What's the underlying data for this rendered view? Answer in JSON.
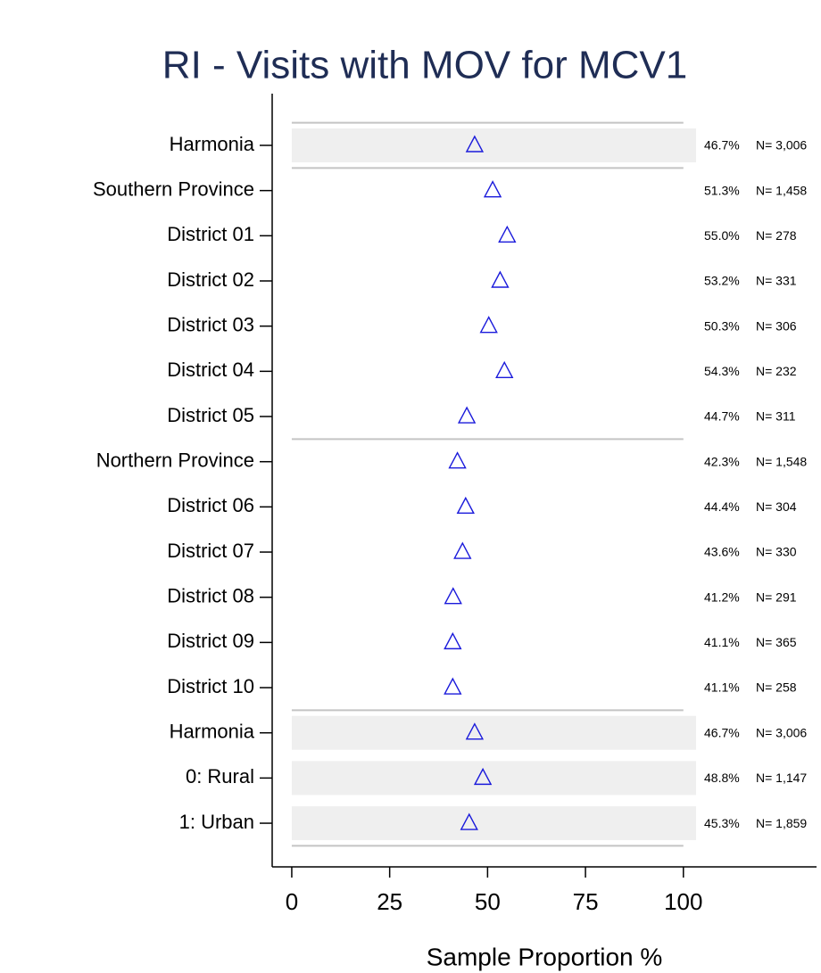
{
  "chart_data": {
    "type": "dot",
    "title": "RI - Visits with MOV for MCV1",
    "xlabel": "Sample Proportion %",
    "categories": [
      "Harmonia",
      "Southern Province",
      "District 01",
      "District 02",
      "District 03",
      "District 04",
      "District 05",
      "Northern Province",
      "District 06",
      "District 07",
      "District 08",
      "District 09",
      "District 10",
      "Harmonia",
      "0: Rural",
      "1: Urban"
    ],
    "values": [
      46.7,
      51.3,
      55.0,
      53.2,
      50.3,
      54.3,
      44.7,
      42.3,
      44.4,
      43.6,
      41.2,
      41.1,
      41.1,
      46.7,
      48.8,
      45.3
    ],
    "value_labels": [
      "46.7%",
      "51.3%",
      "55.0%",
      "53.2%",
      "50.3%",
      "54.3%",
      "44.7%",
      "42.3%",
      "44.4%",
      "43.6%",
      "41.2%",
      "41.1%",
      "41.1%",
      "46.7%",
      "48.8%",
      "45.3%"
    ],
    "n_labels": [
      "N= 3,006",
      "N= 1,458",
      "N= 278",
      "N= 331",
      "N= 306",
      "N= 232",
      "N= 311",
      "N= 1,548",
      "N= 304",
      "N= 330",
      "N= 291",
      "N= 365",
      "N= 258",
      "N= 3,006",
      "N= 1,147",
      "N= 1,859"
    ],
    "color": "#1a1adb",
    "xlim": [
      -5,
      134
    ],
    "xticks": [
      0,
      25,
      50,
      75,
      100
    ]
  }
}
